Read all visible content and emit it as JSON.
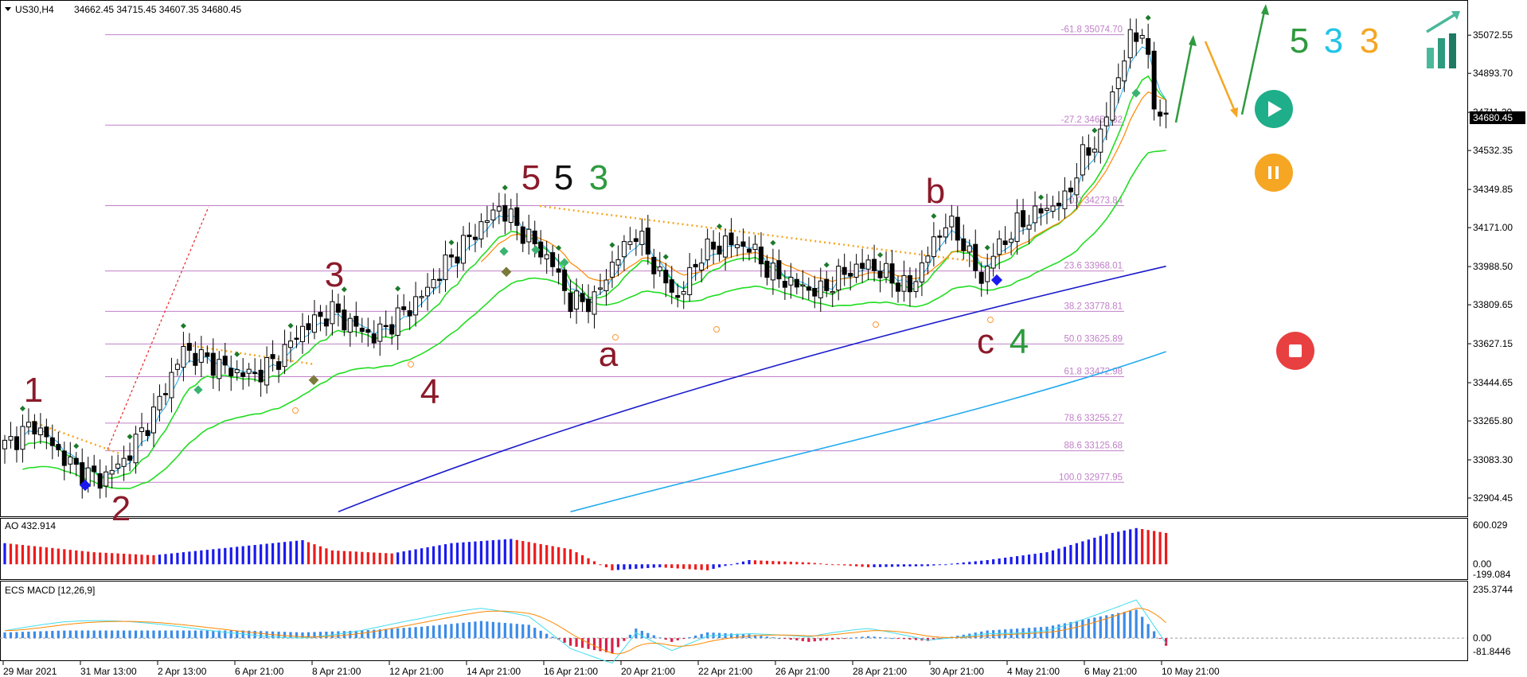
{
  "header": {
    "symbol": "US30,H4",
    "ohlc": "34662.45  34715.45  34607.35  34680.45"
  },
  "price_axis": {
    "ticks": [
      "35072.55",
      "34893.70",
      "34711.20",
      "34532.35",
      "34349.85",
      "34171.00",
      "33988.50",
      "33809.65",
      "33627.15",
      "33444.65",
      "33265.80",
      "33083.30",
      "32904.45"
    ],
    "current_price": "34680.45"
  },
  "time_axis": {
    "labels": [
      "29 Mar 2021",
      "31 Mar 13:00",
      "2 Apr 13:00",
      "6 Apr 21:00",
      "8 Apr 21:00",
      "12 Apr 21:00",
      "14 Apr 21:00",
      "16 Apr 21:00",
      "20 Apr 21:00",
      "22 Apr 21:00",
      "26 Apr 21:00",
      "28 Apr 21:00",
      "30 Apr 21:00",
      "4 May 21:00",
      "6 May 21:00",
      "10 May 21:00"
    ]
  },
  "fib_levels": [
    {
      "label": "-61.8 35074.70"
    },
    {
      "label": "-27.2 34651.32"
    },
    {
      "label": "0.0 34273.84"
    },
    {
      "label": "23.6 33968.01"
    },
    {
      "label": "38.2 33778.81"
    },
    {
      "label": "50.0 33625.89"
    },
    {
      "label": "61.8 33472.98"
    },
    {
      "label": "78.6 33255.27"
    },
    {
      "label": "88.6 33125.68"
    },
    {
      "label": "100.0 32977.95"
    }
  ],
  "wave_labels": [
    {
      "text": "1",
      "color": "#8b1a2a"
    },
    {
      "text": "2",
      "color": "#8b1a2a"
    },
    {
      "text": "3",
      "color": "#8b1a2a"
    },
    {
      "text": "4",
      "color": "#8b1a2a"
    },
    {
      "text": "5",
      "color": "#8b1a2a"
    },
    {
      "text": "5",
      "color": "#111111"
    },
    {
      "text": "3",
      "color": "#2e9a3e"
    },
    {
      "text": "a",
      "color": "#8b1a2a"
    },
    {
      "text": "b",
      "color": "#8b1a2a"
    },
    {
      "text": "c",
      "color": "#8b1a2a"
    },
    {
      "text": "4",
      "color": "#2e9a3e"
    },
    {
      "text": "5",
      "color": "#2e9a3e"
    },
    {
      "text": "3",
      "color": "#22c4e6"
    },
    {
      "text": "3",
      "color": "#f5a623"
    }
  ],
  "ao_panel": {
    "label": "AO 432.914",
    "ticks": [
      "600.029",
      "0.00",
      "-199.084"
    ]
  },
  "macd_panel": {
    "label": "ECS MACD [12,26,9]",
    "ticks": [
      "235.3744",
      "0.00",
      "-81.8446"
    ]
  },
  "colors": {
    "fib": "#c080c8",
    "ema_green": "#22dd22",
    "ma_blue": "#1a1acc",
    "ma_lightblue": "#22aaee",
    "ma_orange": "#ff8800",
    "ma_magenta": "#ee00ee",
    "ao_up": "#1a1aee",
    "ao_down": "#ee1a1a",
    "play_button": "#1fae8a",
    "pause_button": "#f5a623",
    "stop_button": "#e84040",
    "arrow_green": "#2e9a3e",
    "arrow_orange": "#f5a623"
  },
  "chart_data": {
    "type": "candlestick",
    "title": "US30,H4",
    "y_range": [
      32830,
      35200
    ],
    "key_prices": {
      "open": 34662.45,
      "high": 34715.45,
      "low": 34607.35,
      "close": 34680.45,
      "swing_high_wave5": 34280,
      "wave_a_low": 33750,
      "wave_c_low": 33770,
      "recent_high": 35160
    },
    "close_path": [
      [
        0,
        33150
      ],
      [
        5,
        33250
      ],
      [
        9,
        33120
      ],
      [
        12,
        33040
      ],
      [
        16,
        32990
      ],
      [
        20,
        33080
      ],
      [
        25,
        33300
      ],
      [
        30,
        33600
      ],
      [
        33,
        33560
      ],
      [
        38,
        33500
      ],
      [
        42,
        33480
      ],
      [
        46,
        33560
      ],
      [
        50,
        33700
      ],
      [
        55,
        33780
      ],
      [
        58,
        33720
      ],
      [
        62,
        33660
      ],
      [
        66,
        33750
      ],
      [
        70,
        33850
      ],
      [
        74,
        34000
      ],
      [
        80,
        34180
      ],
      [
        83,
        34270
      ],
      [
        86,
        34180
      ],
      [
        88,
        34120
      ],
      [
        92,
        34000
      ],
      [
        95,
        33820
      ],
      [
        99,
        33830
      ],
      [
        102,
        34000
      ],
      [
        106,
        34150
      ],
      [
        110,
        33950
      ],
      [
        113,
        33840
      ],
      [
        117,
        34050
      ],
      [
        121,
        34100
      ],
      [
        125,
        34080
      ],
      [
        129,
        33950
      ],
      [
        133,
        33900
      ],
      [
        137,
        33870
      ],
      [
        141,
        33960
      ],
      [
        145,
        34000
      ],
      [
        149,
        33930
      ],
      [
        152,
        33880
      ],
      [
        155,
        34050
      ],
      [
        158,
        34200
      ],
      [
        161,
        34100
      ],
      [
        164,
        33920
      ],
      [
        166,
        34050
      ],
      [
        170,
        34180
      ],
      [
        174,
        34250
      ],
      [
        178,
        34300
      ],
      [
        181,
        34500
      ],
      [
        184,
        34600
      ],
      [
        186,
        34800
      ],
      [
        189,
        35050
      ],
      [
        191,
        35100
      ],
      [
        193,
        34750
      ],
      [
        195,
        34680
      ]
    ],
    "ao_values": [
      [
        0,
        350
      ],
      [
        15,
        200
      ],
      [
        25,
        150
      ],
      [
        40,
        300
      ],
      [
        50,
        400
      ],
      [
        55,
        230
      ],
      [
        65,
        180
      ],
      [
        75,
        350
      ],
      [
        85,
        420
      ],
      [
        95,
        250
      ],
      [
        102,
        -100
      ],
      [
        110,
        -50
      ],
      [
        118,
        -100
      ],
      [
        125,
        70
      ],
      [
        135,
        30
      ],
      [
        145,
        -50
      ],
      [
        155,
        -30
      ],
      [
        165,
        70
      ],
      [
        175,
        200
      ],
      [
        185,
        500
      ],
      [
        190,
        600
      ],
      [
        195,
        520
      ]
    ],
    "macd_values": [
      [
        0,
        30
      ],
      [
        10,
        40
      ],
      [
        20,
        40
      ],
      [
        30,
        40
      ],
      [
        40,
        40
      ],
      [
        50,
        30
      ],
      [
        60,
        40
      ],
      [
        70,
        60
      ],
      [
        80,
        90
      ],
      [
        88,
        70
      ],
      [
        95,
        -40
      ],
      [
        102,
        -80
      ],
      [
        106,
        50
      ],
      [
        112,
        -20
      ],
      [
        118,
        30
      ],
      [
        125,
        20
      ],
      [
        135,
        -20
      ],
      [
        145,
        10
      ],
      [
        155,
        -15
      ],
      [
        165,
        40
      ],
      [
        175,
        60
      ],
      [
        185,
        120
      ],
      [
        190,
        150
      ],
      [
        195,
        -40
      ]
    ]
  }
}
